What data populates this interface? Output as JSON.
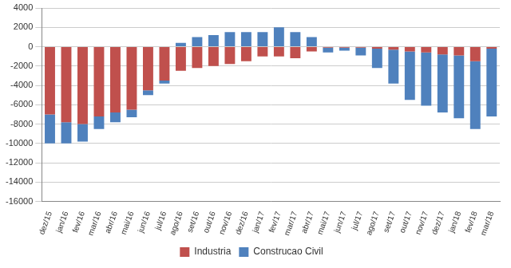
{
  "chart_data": {
    "type": "bar",
    "stacked": true,
    "grid": true,
    "legend": "bottom",
    "categories": [
      "dez/15",
      "jan/16",
      "fev/16",
      "mar/16",
      "abr/16",
      "mai/16",
      "jun/16",
      "jul/16",
      "ago/16",
      "set/16",
      "out/16",
      "nov/16",
      "dez/16",
      "jan/17",
      "fev/17",
      "mar/17",
      "abr/17",
      "mai/17",
      "jun/17",
      "jul/17",
      "ago/17",
      "set/17",
      "out/17",
      "nov/17",
      "dez/17",
      "jan/18",
      "fev/18",
      "mar/18"
    ],
    "series": [
      {
        "name": "Industria",
        "color": "#c0504d",
        "values": [
          -7000,
          -7800,
          -8000,
          -7200,
          -6800,
          -6500,
          -4500,
          -3500,
          -2500,
          -2200,
          -2000,
          -1800,
          -1500,
          -1000,
          -1000,
          -1200,
          -500,
          -100,
          -100,
          -100,
          -200,
          -300,
          -500,
          -600,
          -800,
          -900,
          -1500,
          -200
        ]
      },
      {
        "name": "Construcao Civil",
        "color": "#4f81bd",
        "values": [
          -3000,
          -2200,
          -1800,
          -1300,
          -1000,
          -800,
          -500,
          -300,
          400,
          1000,
          1200,
          1500,
          1500,
          1500,
          2000,
          1500,
          1000,
          -500,
          -300,
          -800,
          -2000,
          -3500,
          -5000,
          -5500,
          -6000,
          -6500,
          -7000,
          -7000
        ]
      }
    ],
    "ylim": [
      -16000,
      4000
    ],
    "yticks": [
      -16000,
      -14000,
      -12000,
      -10000,
      -8000,
      -6000,
      -4000,
      -2000,
      0,
      2000,
      4000
    ]
  }
}
